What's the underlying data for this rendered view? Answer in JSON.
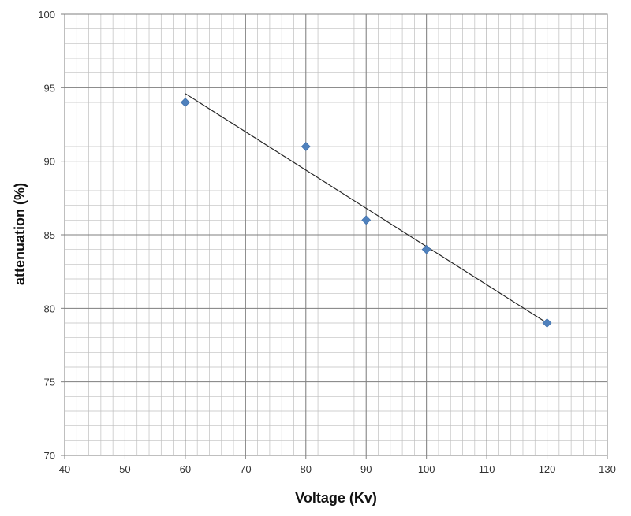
{
  "chart_data": {
    "type": "scatter",
    "title": "",
    "xlabel": "Voltage (Kv)",
    "ylabel": "attenuation (%)",
    "xlim": [
      40,
      130
    ],
    "ylim": [
      70,
      100
    ],
    "x_ticks": [
      40,
      50,
      60,
      70,
      80,
      90,
      100,
      110,
      120,
      130
    ],
    "y_ticks": [
      70,
      75,
      80,
      85,
      90,
      95,
      100
    ],
    "grid": true,
    "legend": "none",
    "series": [
      {
        "marker": "diamond",
        "color": "#4F81BD",
        "points": [
          {
            "x": 60,
            "y": 94
          },
          {
            "x": 80,
            "y": 91
          },
          {
            "x": 90,
            "y": 86
          },
          {
            "x": 100,
            "y": 84
          },
          {
            "x": 120,
            "y": 79
          }
        ]
      }
    ],
    "trendline": {
      "type": "linear",
      "color": "#222222",
      "from": {
        "x": 60,
        "y": 94.6
      },
      "to": {
        "x": 120,
        "y": 79
      }
    }
  }
}
